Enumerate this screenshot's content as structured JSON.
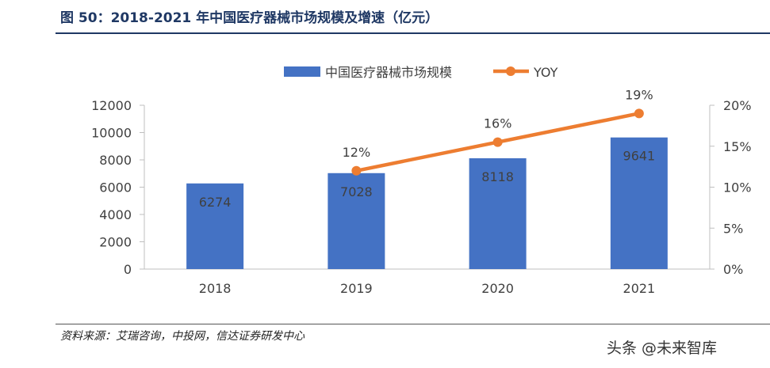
{
  "figure_title": "图 50：2018-2021 年中国医疗器械市场规模及增速（亿元）",
  "source_note": "资料来源：艾瑞咨询，中投网，信达证券研发中心",
  "watermark": "头条 @未来智库",
  "colors": {
    "bar": "#4472C4",
    "line": "#ED7D31",
    "title": "#1F3864",
    "axis": "#BFBFBF",
    "text": "#404040"
  },
  "chart_data": {
    "type": "bar",
    "categories": [
      "2018",
      "2019",
      "2020",
      "2021"
    ],
    "series": [
      {
        "name": "中国医疗器械市场规模",
        "type": "bar",
        "axis": "left",
        "values": [
          6274,
          7028,
          8118,
          9641
        ],
        "labels": [
          "6274",
          "7028",
          "8118",
          "9641"
        ]
      },
      {
        "name": "YOY",
        "type": "line",
        "axis": "right",
        "values": [
          null,
          0.12,
          0.155,
          0.19
        ],
        "labels": [
          "",
          "12%",
          "16%",
          "19%"
        ]
      }
    ],
    "y_left": {
      "ylim": [
        0,
        12000
      ],
      "ticks": [
        "0",
        "2000",
        "4000",
        "6000",
        "8000",
        "10000",
        "12000"
      ]
    },
    "y_right": {
      "ylim": [
        0,
        0.2
      ],
      "ticks": [
        "0%",
        "5%",
        "10%",
        "15%",
        "20%"
      ]
    },
    "legend_position": "top-center",
    "grid": false
  }
}
